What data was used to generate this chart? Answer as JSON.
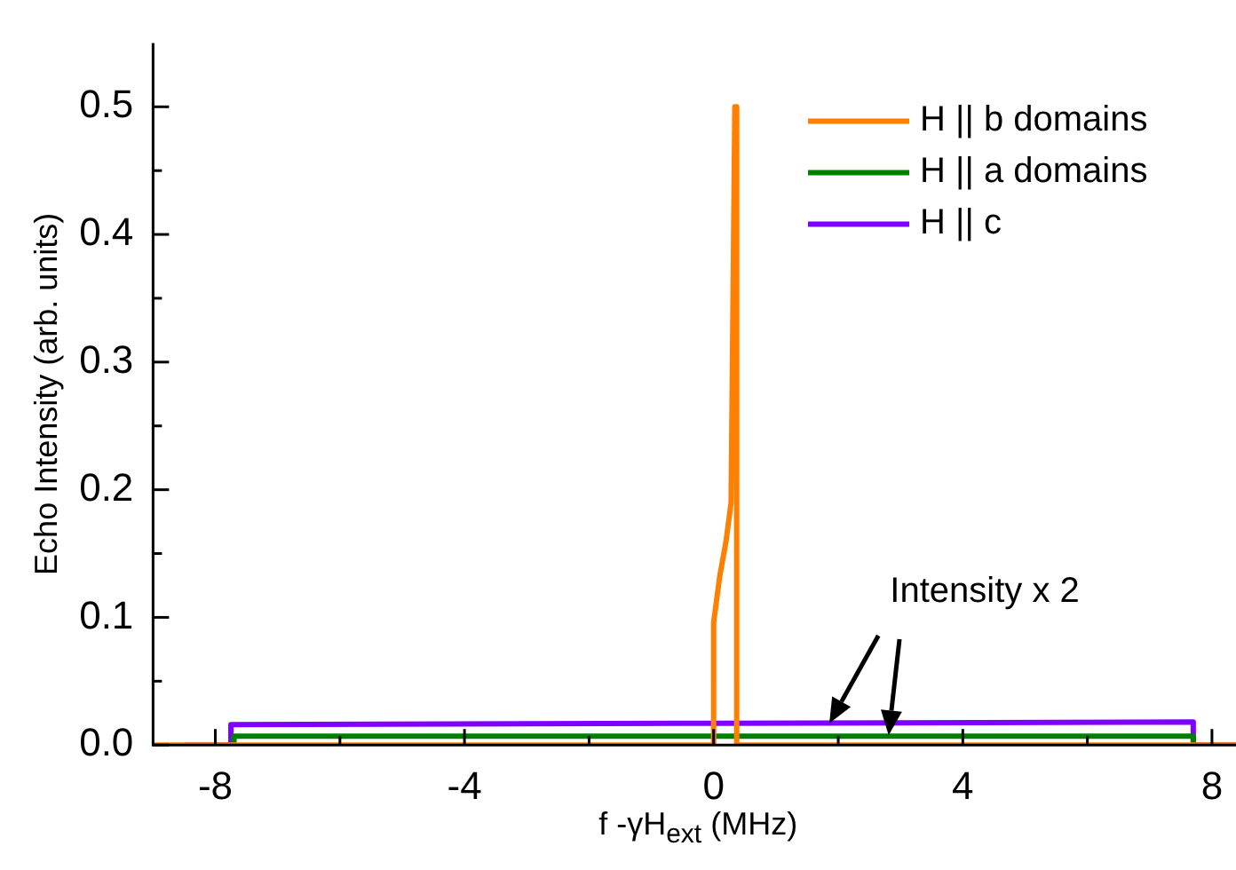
{
  "chart_data": {
    "type": "line",
    "xlabel": "f -γH$_{ext}$ (MHz)",
    "ylabel": "Echo Intensity (arb. units)",
    "xlim": [
      -9,
      8.5
    ],
    "xticks": [
      -8,
      {
        "value": -6,
        "label": null
      },
      -4,
      {
        "value": -2,
        "label": null
      },
      0,
      {
        "value": 2,
        "label": null
      },
      4,
      {
        "value": 6,
        "label": null
      },
      8
    ],
    "ylim": [
      0,
      0.55
    ],
    "yticks": [
      {
        "value": 0,
        "label": "0.0"
      },
      {
        "value": 0.05,
        "label": null
      },
      0.1,
      {
        "value": 0.15,
        "label": null
      },
      0.2,
      {
        "value": 0.25,
        "label": null
      },
      0.3,
      {
        "value": 0.35,
        "label": null
      },
      0.4,
      {
        "value": 0.45,
        "label": null
      },
      0.5
    ],
    "series": [
      {
        "name": "H || b domains",
        "color": "#ff7f00",
        "x": [
          -9,
          0,
          0,
          0.1,
          0.2,
          0.28,
          0.34,
          0.37,
          0.37,
          8.5
        ],
        "values": [
          0,
          0,
          0.096,
          0.133,
          0.16,
          0.19,
          0.5,
          0.5,
          0,
          0
        ]
      },
      {
        "name": "H || a domains",
        "color": "#008000",
        "x": [
          -7.7,
          -7.7,
          7.7,
          7.7
        ],
        "values": [
          0,
          0.007,
          0.007,
          0
        ]
      },
      {
        "name": "H || c",
        "color": "#8000ff",
        "x": [
          -8.5,
          -7.75,
          -7.75,
          0,
          7.7,
          7.7,
          8.5
        ],
        "values": [
          0,
          0,
          0.016,
          0.017,
          0.018,
          0,
          0
        ]
      }
    ],
    "legend": "top right",
    "grid": false,
    "marker": "none",
    "line_style": "solid",
    "annotations": [
      "Intensity x 2"
    ]
  }
}
